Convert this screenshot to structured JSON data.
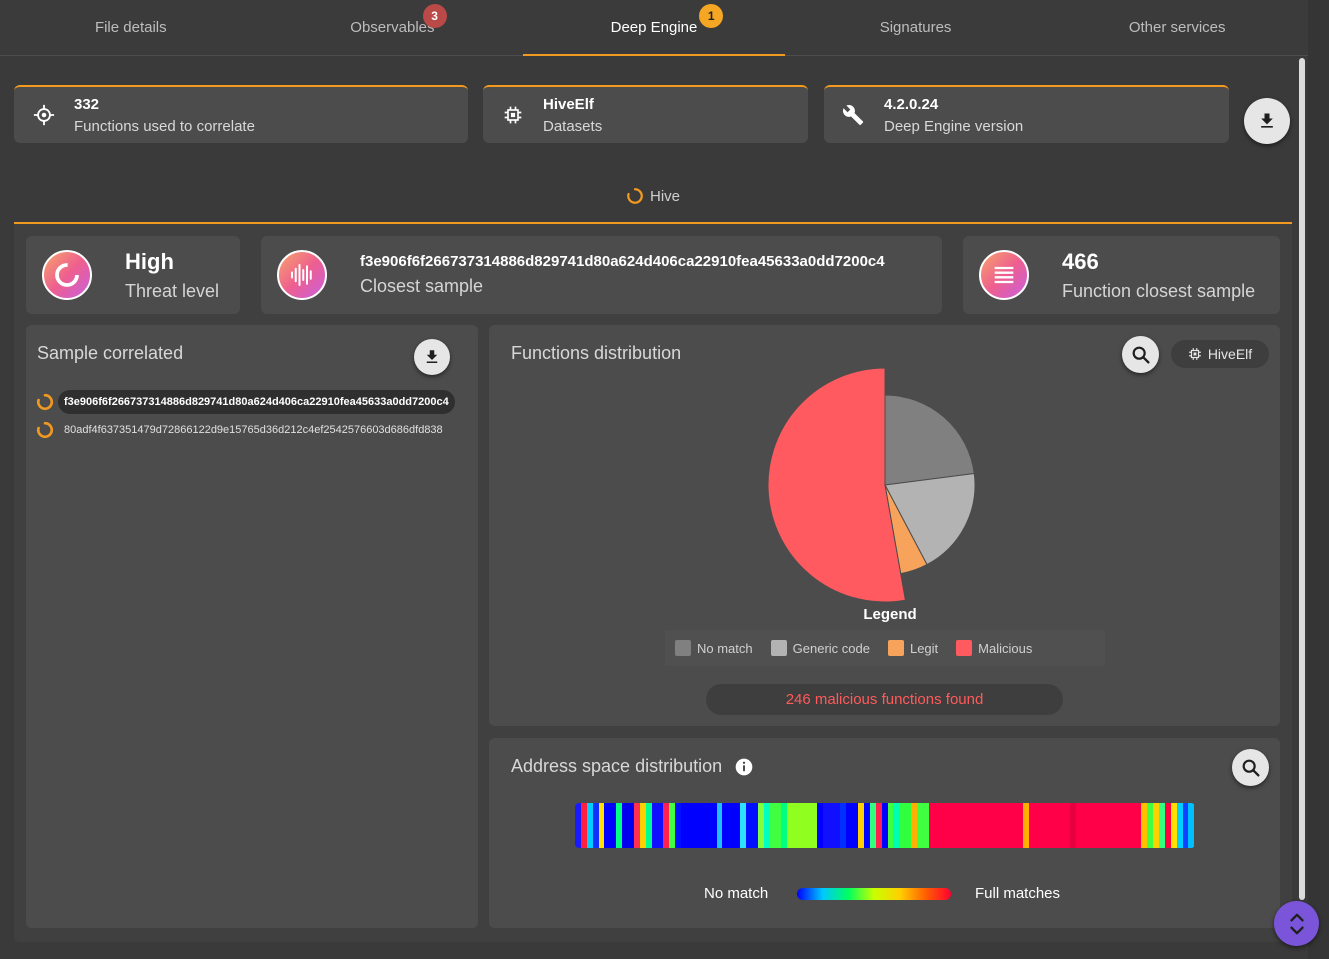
{
  "tabs": [
    {
      "label": "File details",
      "badge": ""
    },
    {
      "label": "Observables",
      "badge": "3"
    },
    {
      "label": "Deep Engine",
      "badge": "1"
    },
    {
      "label": "Signatures",
      "badge": ""
    },
    {
      "label": "Other services",
      "badge": ""
    }
  ],
  "info_cards": [
    {
      "value": "332",
      "label": "Functions used to correlate",
      "icon": "crosshair-icon"
    },
    {
      "value": "HiveElf",
      "label": "Datasets",
      "icon": "chip-icon"
    },
    {
      "value": "4.2.0.24",
      "label": "Deep Engine version",
      "icon": "wrench-icon"
    }
  ],
  "hive": {
    "title": "Hive"
  },
  "stats": {
    "threat": {
      "value": "High",
      "label": "Threat level"
    },
    "closest": {
      "value": "f3e906f6f266737314886d829741d80a624d406ca22910fea45633a0dd7200c4",
      "label": "Closest sample"
    },
    "functions": {
      "value": "466",
      "label": "Function closest sample"
    }
  },
  "sample_correlated": {
    "title": "Sample correlated",
    "items": [
      "f3e906f6f266737314886d829741d80a624d406ca22910fea45633a0dd7200c4",
      "80adf4f637351479d72866122d9e15765d36d212c4ef2542576603d686dfd838"
    ]
  },
  "functions_distribution": {
    "title": "Functions distribution",
    "dataset_chip": "HiveElf",
    "legend_title": "Legend",
    "legend": [
      {
        "label": "No match",
        "color": "#808080"
      },
      {
        "label": "Generic code",
        "color": "#b3b3b3"
      },
      {
        "label": "Legit",
        "color": "#f7a35c"
      },
      {
        "label": "Malicious",
        "color": "#ff5a5f"
      }
    ],
    "found_text": "246 malicious functions found"
  },
  "chart_data": {
    "type": "pie",
    "categories": [
      "No match",
      "Generic code",
      "Legit",
      "Malicious"
    ],
    "values": [
      107,
      90,
      23,
      246
    ],
    "colors": [
      "#808080",
      "#b3b3b3",
      "#f7a35c",
      "#ff5a5f"
    ],
    "title": "Functions distribution"
  },
  "address_space": {
    "title": "Address space distribution",
    "low_label": "No match",
    "high_label": "Full matches"
  }
}
